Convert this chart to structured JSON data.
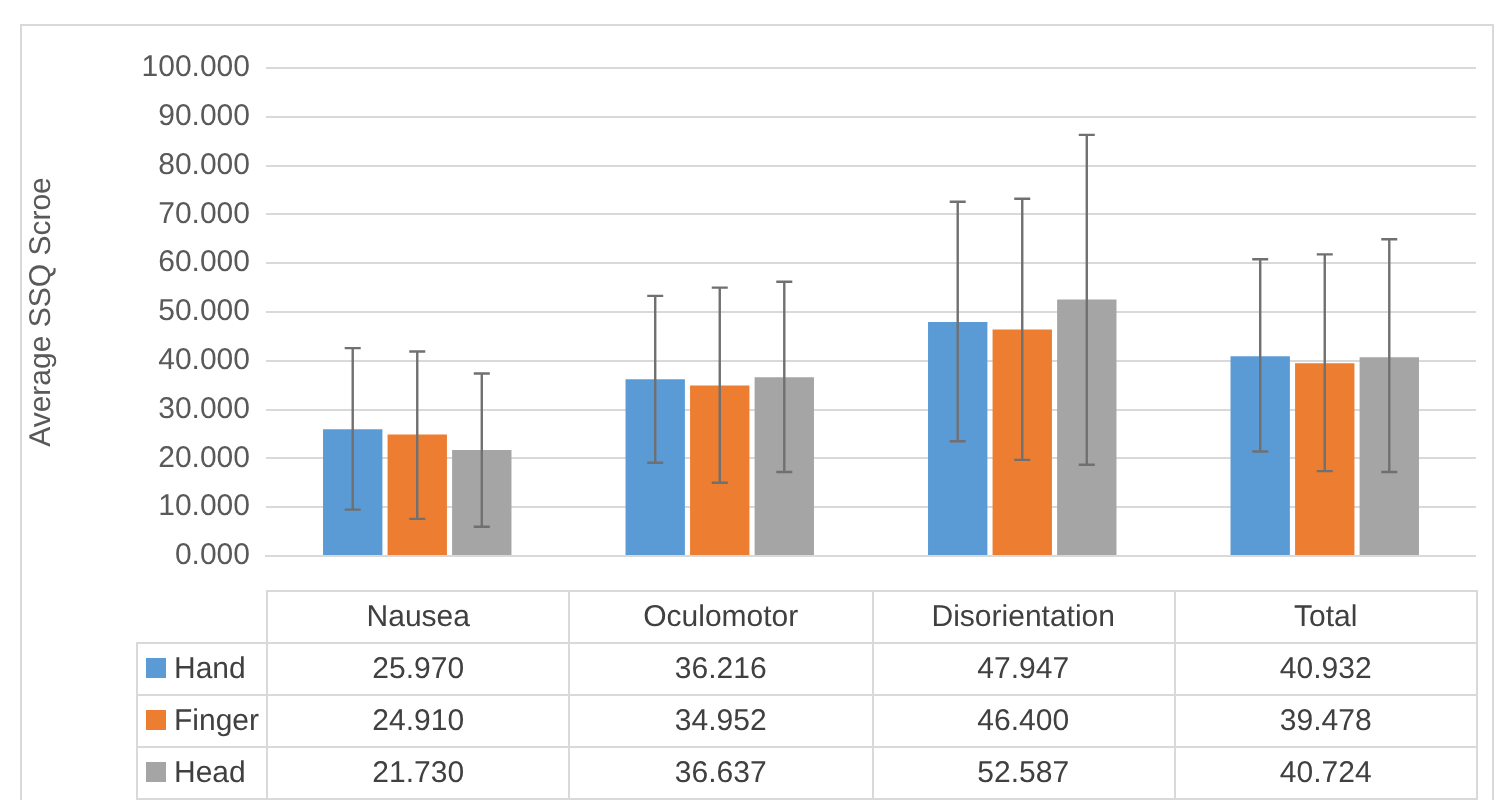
{
  "chart_data": {
    "type": "bar",
    "ylabel": "Average SSQ Scroe",
    "categories": [
      "Nausea",
      "Oculomotor",
      "Disorientation",
      "Total"
    ],
    "series": [
      {
        "name": "Hand",
        "color": "#5b9bd5",
        "values": [
          25.97,
          36.216,
          47.947,
          40.932
        ],
        "value_labels": [
          "25.970",
          "36.216",
          "47.947",
          "40.932"
        ],
        "errors": [
          [
            9.5,
            42.6
          ],
          [
            19.1,
            53.3
          ],
          [
            23.5,
            72.6
          ],
          [
            21.4,
            60.8
          ]
        ]
      },
      {
        "name": "Finger",
        "color": "#ed7d31",
        "values": [
          24.91,
          34.952,
          46.4,
          39.478
        ],
        "value_labels": [
          "24.910",
          "34.952",
          "46.400",
          "39.478"
        ],
        "errors": [
          [
            7.6,
            41.9
          ],
          [
            15.0,
            55.0
          ],
          [
            19.7,
            73.2
          ],
          [
            17.4,
            61.8
          ]
        ]
      },
      {
        "name": "Head",
        "color": "#a5a5a5",
        "values": [
          21.73,
          36.637,
          52.587,
          40.724
        ],
        "value_labels": [
          "21.730",
          "36.637",
          "52.587",
          "40.724"
        ],
        "errors": [
          [
            6.0,
            37.4
          ],
          [
            17.2,
            56.2
          ],
          [
            18.7,
            86.3
          ],
          [
            17.2,
            64.9
          ]
        ]
      }
    ],
    "ylim": [
      0,
      100
    ],
    "yticks": [
      {
        "value": 0,
        "label": "0.000"
      },
      {
        "value": 10,
        "label": "10.000"
      },
      {
        "value": 20,
        "label": "20.000"
      },
      {
        "value": 30,
        "label": "30.000"
      },
      {
        "value": 40,
        "label": "40.000"
      },
      {
        "value": 50,
        "label": "50.000"
      },
      {
        "value": 60,
        "label": "60.000"
      },
      {
        "value": 70,
        "label": "70.000"
      },
      {
        "value": 80,
        "label": "80.000"
      },
      {
        "value": 90,
        "label": "90.000"
      },
      {
        "value": 100,
        "label": "100.000"
      }
    ],
    "grid": "y",
    "legend": "bottom"
  }
}
